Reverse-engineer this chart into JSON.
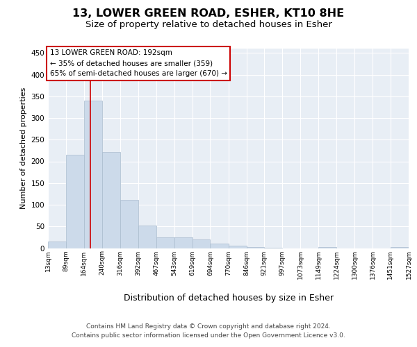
{
  "title": "13, LOWER GREEN ROAD, ESHER, KT10 8HE",
  "subtitle": "Size of property relative to detached houses in Esher",
  "xlabel": "Distribution of detached houses by size in Esher",
  "ylabel": "Number of detached properties",
  "bar_color": "#ccdaea",
  "bar_edge_color": "#aabcce",
  "highlight_line_color": "#cc0000",
  "highlight_value": 192,
  "annotation_line1": "13 LOWER GREEN ROAD: 192sqm",
  "annotation_line2": "← 35% of detached houses are smaller (359)",
  "annotation_line3": "65% of semi-detached houses are larger (670) →",
  "annotation_box_facecolor": "#ffffff",
  "annotation_box_edgecolor": "#cc0000",
  "bins": [
    13,
    89,
    164,
    240,
    316,
    392,
    467,
    543,
    619,
    694,
    770,
    846,
    921,
    997,
    1073,
    1149,
    1224,
    1300,
    1376,
    1451,
    1527
  ],
  "bar_heights": [
    15,
    215,
    340,
    222,
    112,
    52,
    25,
    25,
    20,
    10,
    5,
    2,
    1,
    0,
    0,
    3,
    0,
    0,
    0,
    3
  ],
  "ylim": [
    0,
    460
  ],
  "yticks": [
    0,
    50,
    100,
    150,
    200,
    250,
    300,
    350,
    400,
    450
  ],
  "bg_color": "#ffffff",
  "plot_bg_color": "#e8eef5",
  "grid_color": "#ffffff",
  "footer_line1": "Contains HM Land Registry data © Crown copyright and database right 2024.",
  "footer_line2": "Contains public sector information licensed under the Open Government Licence v3.0.",
  "title_fontsize": 11.5,
  "subtitle_fontsize": 9.5,
  "tick_fontsize": 6.5,
  "ylabel_fontsize": 8,
  "xlabel_fontsize": 9,
  "footer_fontsize": 6.5,
  "annotation_fontsize": 7.5
}
